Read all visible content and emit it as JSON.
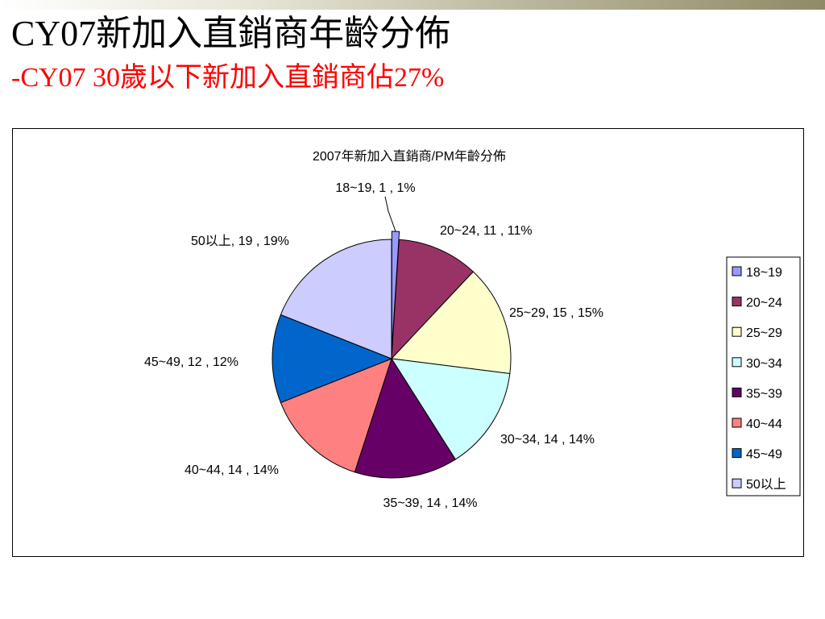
{
  "slide": {
    "title": "CY07新加入直銷商年齡分佈",
    "subtitle": "-CY07 30歲以下新加入直銷商佔27%"
  },
  "chart_data": {
    "type": "pie",
    "title": "2007年新加入直銷商/PM年齡分佈",
    "categories": [
      "18~19",
      "20~24",
      "25~29",
      "30~34",
      "35~39",
      "40~44",
      "45~49",
      "50以上"
    ],
    "values": [
      1,
      11,
      15,
      14,
      14,
      14,
      12,
      19
    ],
    "percents": [
      "1%",
      "11%",
      "15%",
      "14%",
      "14%",
      "14%",
      "12%",
      "19%"
    ],
    "data_labels": [
      "18~19,  1 , 1%",
      "20~24,  11 , 11%",
      "25~29,  15 , 15%",
      "30~34,  14 , 14%",
      "35~39,  14 , 14%",
      "40~44,  14 , 14%",
      "45~49,  12 , 12%",
      "50以上,  19 , 19%"
    ],
    "colors": [
      "#9999ff",
      "#993366",
      "#ffffcc",
      "#ccffff",
      "#660066",
      "#ff8080",
      "#0066cc",
      "#ccccff"
    ],
    "exploded": [
      "18~19"
    ],
    "legend_position": "right"
  }
}
